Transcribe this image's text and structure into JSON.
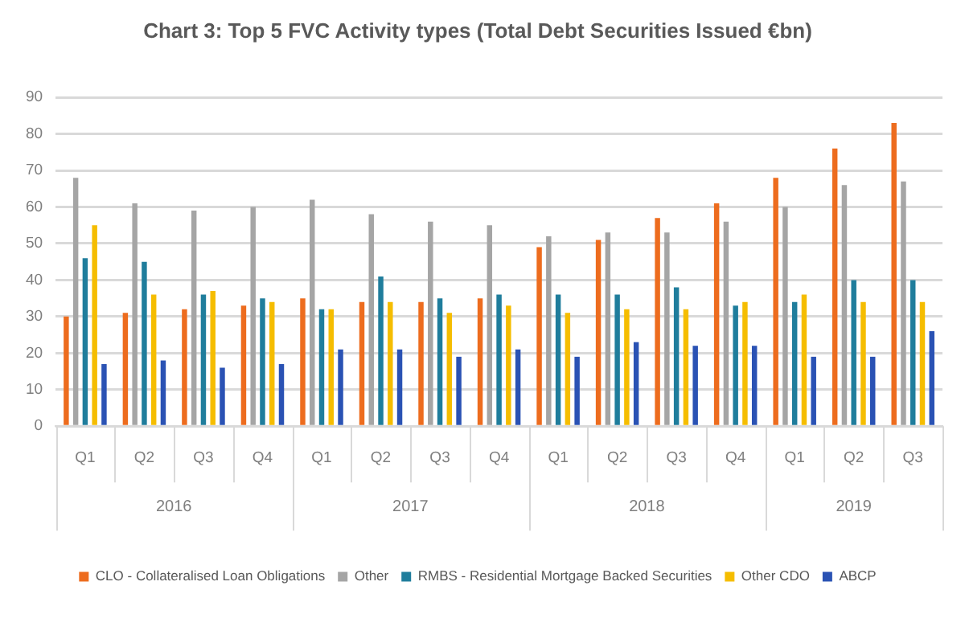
{
  "chart_data": {
    "type": "bar",
    "title": "Chart 3: Top 5 FVC Activity types (Total Debt Securities Issued €bn)",
    "categories": [
      "Q1",
      "Q2",
      "Q3",
      "Q4",
      "Q1",
      "Q2",
      "Q3",
      "Q4",
      "Q1",
      "Q2",
      "Q3",
      "Q4",
      "Q1",
      "Q2",
      "Q3"
    ],
    "series": [
      {
        "name": "CLO - Collateralised Loan Obligations",
        "color": "#ed6c1e",
        "values": [
          30,
          31,
          32,
          33,
          35,
          34,
          34,
          35,
          49,
          51,
          57,
          61,
          68,
          76,
          83
        ]
      },
      {
        "name": "Other",
        "color": "#a5a5a5",
        "values": [
          68,
          61,
          59,
          60,
          62,
          58,
          56,
          55,
          52,
          53,
          53,
          56,
          60,
          66,
          67
        ]
      },
      {
        "name": "RMBS - Residential Mortgage Backed Securities",
        "color": "#1f7d9c",
        "values": [
          46,
          45,
          36,
          35,
          32,
          41,
          35,
          36,
          36,
          36,
          38,
          33,
          34,
          40,
          40
        ]
      },
      {
        "name": "Other CDO",
        "color": "#f5bd00",
        "values": [
          55,
          36,
          37,
          34,
          32,
          34,
          31,
          33,
          31,
          32,
          32,
          34,
          36,
          34,
          34
        ]
      },
      {
        "name": "ABCP",
        "color": "#2a52b4",
        "values": [
          17,
          18,
          16,
          17,
          21,
          21,
          19,
          21,
          19,
          23,
          22,
          22,
          19,
          19,
          26
        ]
      }
    ],
    "ylim": [
      0,
      90
    ],
    "yticks": [
      0,
      10,
      20,
      30,
      40,
      50,
      60,
      70,
      80,
      90
    ],
    "grid": "y",
    "legend": "bottom",
    "annotations": [
      "2016",
      "2017",
      "2018",
      "2019"
    ]
  }
}
